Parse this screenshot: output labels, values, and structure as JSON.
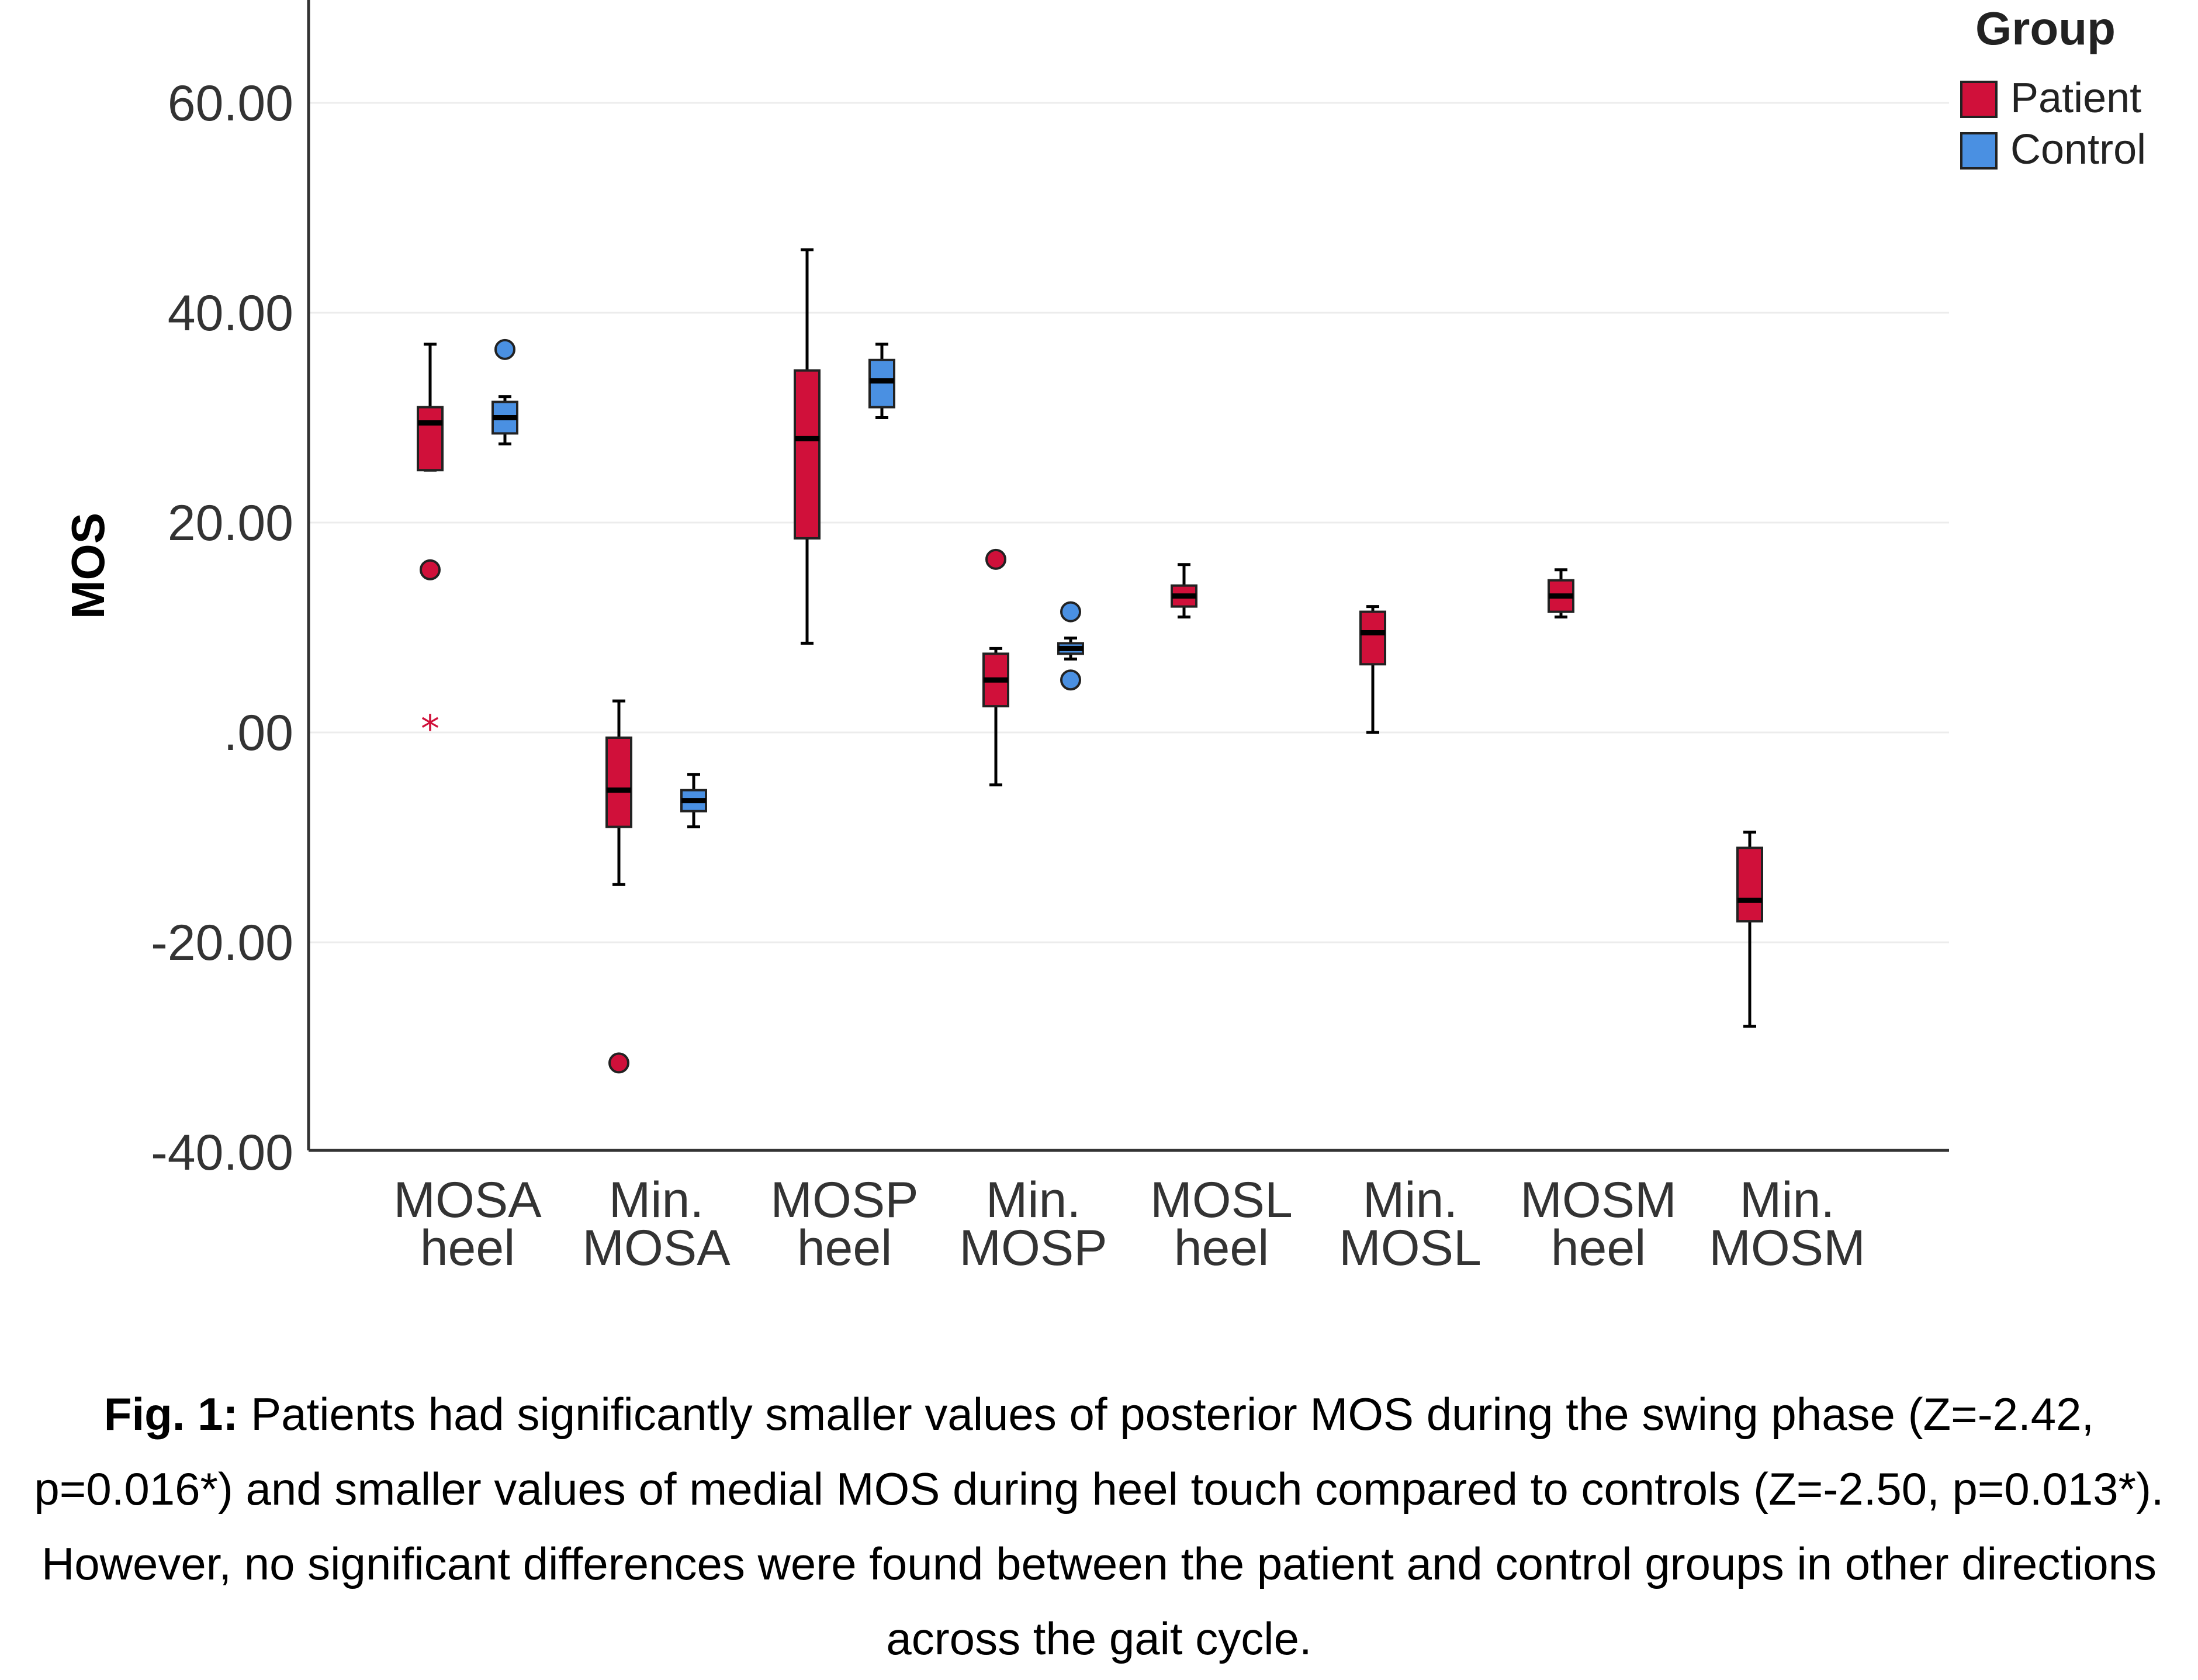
{
  "chart_data": {
    "type": "box",
    "xlabel": "",
    "ylabel": "MOS",
    "ylim": [
      -40,
      70
    ],
    "yticks": [
      -40,
      -20,
      0,
      20,
      40,
      60
    ],
    "ytick_labels": [
      "-40.00",
      "-20.00",
      ".00",
      "20.00",
      "40.00",
      "60.00"
    ],
    "grid": true,
    "legend": {
      "title": "Group",
      "placement": "top-right",
      "entries": [
        {
          "name": "Patient",
          "color": "#D0103A"
        },
        {
          "name": "Control",
          "color": "#4A90E2"
        }
      ]
    },
    "categories": [
      {
        "line1": "MOSA",
        "line2": "heel"
      },
      {
        "line1": "Min.",
        "line2": "MOSA"
      },
      {
        "line1": "MOSP",
        "line2": "heel"
      },
      {
        "line1": "Min.",
        "line2": "MOSP"
      },
      {
        "line1": "MOSL",
        "line2": "heel"
      },
      {
        "line1": "Min.",
        "line2": "MOSL"
      },
      {
        "line1": "MOSM",
        "line2": "heel"
      },
      {
        "line1": "Min.",
        "line2": "MOSM"
      }
    ],
    "series": [
      {
        "name": "Patient",
        "color": "#D0103A",
        "boxes": [
          {
            "whisker_low": 25,
            "q1": 25,
            "median": 29.5,
            "q3": 31,
            "whisker_high": 37,
            "outliers": [
              15.5
            ],
            "extremes": [
              1
            ]
          },
          {
            "whisker_low": -14.5,
            "q1": -9,
            "median": -5.5,
            "q3": -0.5,
            "whisker_high": 3,
            "outliers": [
              -31.5
            ],
            "extremes": []
          },
          {
            "whisker_low": 8.5,
            "q1": 18.5,
            "median": 28,
            "q3": 34.5,
            "whisker_high": 46,
            "outliers": [],
            "extremes": []
          },
          {
            "whisker_low": -5,
            "q1": 2.5,
            "median": 5,
            "q3": 7.5,
            "whisker_high": 8,
            "outliers": [
              16.5
            ],
            "extremes": []
          },
          {
            "whisker_low": 11,
            "q1": 12,
            "median": 13,
            "q3": 14,
            "whisker_high": 16,
            "outliers": [],
            "extremes": []
          },
          {
            "whisker_low": 0,
            "q1": 6.5,
            "median": 9.5,
            "q3": 11.5,
            "whisker_high": 12,
            "outliers": [],
            "extremes": []
          },
          {
            "whisker_low": 11,
            "q1": 11.5,
            "median": 13,
            "q3": 14.5,
            "whisker_high": 15.5,
            "outliers": [],
            "extremes": []
          },
          {
            "whisker_low": -28,
            "q1": -18,
            "median": -16,
            "q3": -11,
            "whisker_high": -9.5,
            "outliers": [],
            "extremes": []
          }
        ]
      },
      {
        "name": "Control",
        "color": "#4A90E2",
        "boxes": [
          {
            "whisker_low": 27.5,
            "q1": 28.5,
            "median": 30,
            "q3": 31.5,
            "whisker_high": 32,
            "outliers": [
              36.5
            ],
            "extremes": []
          },
          {
            "whisker_low": -9,
            "q1": -7.5,
            "median": -6.5,
            "q3": -5.5,
            "whisker_high": -4,
            "outliers": [],
            "extremes": []
          },
          {
            "whisker_low": 30,
            "q1": 31,
            "median": 33.5,
            "q3": 35.5,
            "whisker_high": 37,
            "outliers": [],
            "extremes": []
          },
          {
            "whisker_low": 7,
            "q1": 7.5,
            "median": 8,
            "q3": 8.5,
            "whisker_high": 9,
            "outliers": [
              11.5,
              5
            ]
          }
        ]
      }
    ]
  },
  "caption": {
    "label": "Fig. 1:",
    "text": "Patients had significantly smaller values of posterior MOS during the swing phase (Z=-2.42, p=0.016*) and smaller values of medial MOS during heel touch compared to controls (Z=-2.50, p=0.013*). However, no significant differences were found between the patient and control groups in other directions across the gait cycle."
  }
}
